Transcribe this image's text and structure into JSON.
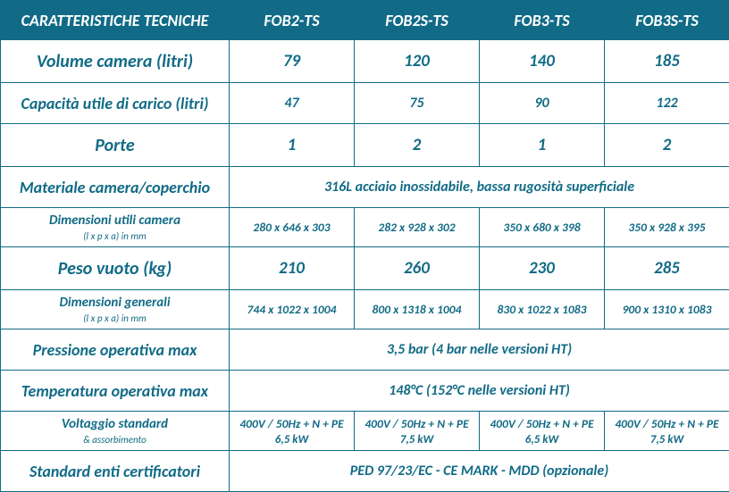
{
  "header_label": "CARATTERISTICHE TECNICHE",
  "models": [
    "FOB2-TS",
    "FOB2S-TS",
    "FOB3-TS",
    "FOB3S-TS"
  ],
  "rows": [
    {
      "label": "Volume camera (litri)",
      "vals": [
        "79",
        "120",
        "140",
        "185"
      ],
      "span": false,
      "size": "big"
    },
    {
      "label": "Capacità utile di carico (litri)",
      "vals": [
        "47",
        "75",
        "90",
        "122"
      ],
      "span": false,
      "size": "mid"
    },
    {
      "label": "Porte",
      "vals": [
        "1",
        "2",
        "1",
        "2"
      ],
      "span": false,
      "size": "big"
    },
    {
      "label": "Materiale camera/coperchio",
      "vals": [
        "316L acciaio inossidabile, bassa rugosità superficiale"
      ],
      "span": true,
      "size": "mid"
    },
    {
      "label": "Dimensioni utili camera",
      "sublabel": "(l x p x a) in mm",
      "vals": [
        "280 x 646 x 303",
        "282 x 928 x 302",
        "350 x 680 x 398",
        "350 x 928 x 395"
      ],
      "span": false,
      "size": "small"
    },
    {
      "label": "Peso vuoto (kg)",
      "vals": [
        "210",
        "260",
        "230",
        "285"
      ],
      "span": false,
      "size": "big"
    },
    {
      "label": "Dimensioni generali",
      "sublabel": "(l x p x a) in mm",
      "vals": [
        "744 x 1022 x 1004",
        "800 x 1318 x 1004",
        "830 x 1022 x 1083",
        "900 x 1310 x 1083"
      ],
      "span": false,
      "size": "small"
    },
    {
      "label": "Pressione operativa max",
      "vals": [
        "3,5 bar (4 bar nelle versioni HT)"
      ],
      "span": true,
      "size": "mid"
    },
    {
      "label": "Temperatura operativa max",
      "vals": [
        "148°C (152°C nelle versioni HT)"
      ],
      "span": true,
      "size": "mid"
    },
    {
      "label": "Voltaggio standard",
      "sublabel": "& assorbimento",
      "vals": [
        "400V / 50Hz + N + PE",
        "400V / 50Hz + N + PE",
        "400V / 50Hz + N + PE",
        "400V / 50Hz + N + PE"
      ],
      "subvals": [
        "6,5 kW",
        "7,5 kW",
        "6,5 kW",
        "7,5 kW"
      ],
      "span": false,
      "size": "small"
    },
    {
      "label": "Standard enti certificatori",
      "vals": [
        "PED 97/23/EC - CE MARK - MDD (opzionale)"
      ],
      "span": true,
      "size": "mid"
    }
  ],
  "colors": {
    "teal": "#116b86",
    "white": "#ffffff"
  }
}
